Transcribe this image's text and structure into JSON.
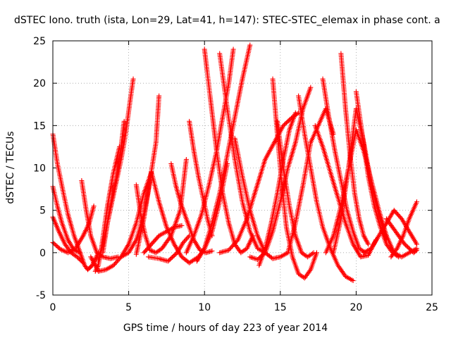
{
  "chart_data": {
    "type": "scatter",
    "title": "dSTEC Iono. truth (ista, Lon=29, Lat=41, h=147): STEC-STEC_elemax in phase cont. a",
    "xlabel": "GPS time / hours of day 223 of year 2014",
    "ylabel": "dSTEC  / TECUs",
    "xlim": [
      0,
      25
    ],
    "ylim": [
      -5,
      25
    ],
    "xticks": [
      0,
      5,
      10,
      15,
      20,
      25
    ],
    "yticks": [
      -5,
      0,
      5,
      10,
      15,
      20,
      25
    ],
    "grid": true,
    "marker": "plus",
    "color": "#ff0000",
    "series": [
      {
        "x": [
          0.0,
          0.3,
          0.7,
          1.0,
          1.4,
          1.8,
          2.1,
          2.3,
          2.6,
          3.0
        ],
        "y": [
          14.0,
          10.5,
          7.0,
          4.5,
          2.0,
          0.0,
          -1.5,
          -2.0,
          -1.5,
          0.0
        ]
      },
      {
        "x": [
          0.0,
          0.3,
          0.6,
          1.0,
          1.4,
          1.8
        ],
        "y": [
          7.8,
          5.5,
          3.5,
          1.5,
          0.3,
          0.0
        ]
      },
      {
        "x": [
          0.0,
          0.4,
          0.8,
          1.2,
          1.6,
          2.0
        ],
        "y": [
          4.2,
          2.5,
          1.0,
          0.0,
          -0.5,
          -1.2
        ]
      },
      {
        "x": [
          0.0,
          0.5,
          1.0,
          1.5,
          2.0,
          2.4,
          2.7
        ],
        "y": [
          1.2,
          0.4,
          0.0,
          0.5,
          2.0,
          3.5,
          5.5
        ]
      },
      {
        "x": [
          1.9,
          2.2,
          2.5,
          2.9,
          3.3,
          3.8,
          4.3
        ],
        "y": [
          8.5,
          5.0,
          2.0,
          0.0,
          -0.5,
          -0.7,
          -0.5
        ]
      },
      {
        "x": [
          2.8,
          3.0,
          3.2,
          3.4,
          3.6,
          3.8,
          4.0,
          4.2,
          4.4
        ],
        "y": [
          -2.2,
          -1.5,
          0.5,
          3.0,
          5.5,
          7.5,
          9.5,
          11.0,
          12.5
        ]
      },
      {
        "x": [
          3.0,
          3.3,
          3.6,
          3.9,
          4.2,
          4.5,
          4.8,
          5.1,
          5.3
        ],
        "y": [
          -1.0,
          1.0,
          3.5,
          6.0,
          8.5,
          11.0,
          14.0,
          18.0,
          20.5
        ]
      },
      {
        "x": [
          3.3,
          3.6,
          3.9,
          4.2,
          4.5,
          4.7
        ],
        "y": [
          0.0,
          3.5,
          6.5,
          9.0,
          12.5,
          15.5
        ]
      },
      {
        "x": [
          2.5,
          3.0,
          3.5,
          4.0,
          4.5,
          5.0,
          5.5,
          6.0,
          6.5
        ],
        "y": [
          -0.5,
          -2.2,
          -2.0,
          -1.5,
          -0.5,
          1.0,
          3.5,
          7.0,
          9.5
        ]
      },
      {
        "x": [
          4.5,
          5.0,
          5.5,
          6.0,
          6.4,
          6.8,
          7.0
        ],
        "y": [
          -0.5,
          0.0,
          1.5,
          4.5,
          8.5,
          13.0,
          18.5
        ]
      },
      {
        "x": [
          5.5,
          5.8,
          6.1,
          6.4,
          6.8,
          7.2,
          7.8,
          8.4,
          8.8
        ],
        "y": [
          8.0,
          4.5,
          2.0,
          0.3,
          0.0,
          0.5,
          2.0,
          5.0,
          11.0
        ]
      },
      {
        "x": [
          5.5,
          6.0,
          6.5,
          7.0,
          7.5,
          8.0,
          8.5,
          9.0,
          9.6,
          10.0,
          10.5,
          11.0,
          11.5
        ],
        "y": [
          -0.2,
          4.0,
          9.5,
          6.0,
          3.0,
          1.0,
          -0.5,
          -1.2,
          -0.5,
          0.5,
          2.5,
          6.0,
          10.5
        ]
      },
      {
        "x": [
          6.0,
          6.5,
          7.0,
          7.5,
          8.0,
          8.5
        ],
        "y": [
          0.0,
          1.0,
          2.0,
          2.5,
          3.0,
          3.2
        ]
      },
      {
        "x": [
          6.3,
          7.0,
          7.6,
          8.2,
          8.6,
          9.0
        ],
        "y": [
          -0.5,
          -0.7,
          -1.0,
          0.0,
          1.2,
          2.0
        ]
      },
      {
        "x": [
          7.8,
          8.1,
          8.4,
          8.7,
          9.0,
          9.3,
          9.7,
          10.1,
          10.5
        ],
        "y": [
          10.5,
          8.0,
          6.0,
          4.5,
          3.0,
          1.5,
          0.3,
          0.0,
          0.2
        ]
      },
      {
        "x": [
          9.0,
          9.3,
          9.6,
          9.9,
          10.2,
          10.5
        ],
        "y": [
          15.5,
          12.0,
          9.0,
          6.5,
          4.0,
          2.0
        ]
      },
      {
        "x": [
          8.8,
          9.3,
          9.8,
          10.3,
          10.8,
          11.2,
          11.6,
          11.9
        ],
        "y": [
          0.0,
          2.0,
          4.5,
          8.0,
          12.0,
          16.0,
          20.0,
          24.0
        ]
      },
      {
        "x": [
          9.5,
          10.0,
          10.5,
          11.0,
          11.5,
          12.0,
          12.5,
          13.0
        ],
        "y": [
          -1.0,
          0.5,
          3.5,
          7.0,
          11.5,
          16.0,
          20.5,
          24.5
        ]
      },
      {
        "x": [
          10.0,
          10.4,
          10.8,
          11.2,
          11.6,
          12.0,
          12.4,
          12.8,
          13.2
        ],
        "y": [
          24.0,
          18.0,
          12.0,
          7.0,
          3.5,
          1.0,
          0.0,
          0.5,
          2.0
        ]
      },
      {
        "x": [
          11.0,
          11.5,
          12.0,
          12.5,
          13.0,
          13.5,
          14.0
        ],
        "y": [
          23.5,
          17.0,
          11.0,
          6.0,
          2.5,
          0.5,
          0.0
        ]
      },
      {
        "x": [
          12.0,
          12.5,
          13.0,
          13.5,
          14.0,
          14.5,
          15.0,
          15.5
        ],
        "y": [
          13.5,
          9.0,
          5.0,
          2.0,
          0.0,
          -0.7,
          -0.5,
          0.0
        ]
      },
      {
        "x": [
          11.0,
          11.6,
          12.2,
          12.8,
          13.4,
          14.0,
          14.6,
          15.2,
          15.8,
          16.2
        ],
        "y": [
          0.0,
          0.3,
          1.5,
          4.0,
          7.5,
          11.0,
          13.0,
          15.0,
          16.0,
          16.5
        ]
      },
      {
        "x": [
          13.0,
          13.5,
          14.0,
          14.5,
          15.0,
          15.5,
          16.0,
          16.5,
          17.0
        ],
        "y": [
          -0.5,
          -0.8,
          0.0,
          2.5,
          6.0,
          10.0,
          13.0,
          17.0,
          19.5
        ]
      },
      {
        "x": [
          13.6,
          14.0,
          14.4,
          14.8,
          15.2,
          15.6,
          16.0
        ],
        "y": [
          -1.5,
          0.5,
          3.5,
          7.0,
          11.0,
          14.5,
          16.5
        ]
      },
      {
        "x": [
          14.5,
          14.8,
          15.1,
          15.4,
          15.8,
          16.2,
          16.6,
          17.0,
          17.4
        ],
        "y": [
          20.5,
          14.0,
          8.0,
          3.0,
          -0.5,
          -2.5,
          -3.0,
          -2.0,
          0.0
        ]
      },
      {
        "x": [
          14.8,
          15.2,
          15.6,
          16.0,
          16.4,
          16.8,
          17.2
        ],
        "y": [
          15.5,
          10.0,
          5.5,
          2.0,
          0.0,
          -0.5,
          0.0
        ]
      },
      {
        "x": [
          15.5,
          16.0,
          16.5,
          17.0,
          17.5,
          18.0,
          18.5
        ],
        "y": [
          0.0,
          3.5,
          8.0,
          13.0,
          15.0,
          17.0,
          14.0
        ]
      },
      {
        "x": [
          16.2,
          16.6,
          17.0,
          17.4,
          17.8,
          18.3,
          18.8,
          19.3,
          19.8
        ],
        "y": [
          18.5,
          14.0,
          10.0,
          6.0,
          3.0,
          0.5,
          -1.5,
          -2.8,
          -3.3
        ]
      },
      {
        "x": [
          17.3,
          17.8,
          18.3,
          18.8,
          19.3,
          19.8,
          20.3,
          20.8,
          21.3
        ],
        "y": [
          15.0,
          12.5,
          9.5,
          6.5,
          3.5,
          1.0,
          -0.5,
          -0.3,
          1.5
        ]
      },
      {
        "x": [
          17.8,
          18.2,
          18.6,
          19.0,
          19.4,
          19.8,
          20.2,
          20.6
        ],
        "y": [
          20.5,
          16.0,
          12.0,
          8.5,
          5.0,
          2.5,
          0.5,
          0.0
        ]
      },
      {
        "x": [
          18.0,
          18.5,
          19.0,
          19.5,
          20.0,
          20.5,
          21.0,
          21.5,
          22.0
        ],
        "y": [
          0.0,
          2.0,
          5.5,
          10.0,
          14.5,
          12.0,
          8.5,
          5.0,
          2.0
        ]
      },
      {
        "x": [
          18.5,
          19.0,
          19.5,
          20.0,
          20.5,
          21.0,
          21.5,
          22.0
        ],
        "y": [
          0.0,
          4.0,
          10.0,
          17.0,
          13.0,
          8.0,
          4.5,
          1.5
        ]
      },
      {
        "x": [
          19.0,
          19.3,
          19.6,
          19.9,
          20.2,
          20.5,
          20.8
        ],
        "y": [
          23.5,
          17.0,
          11.5,
          7.0,
          4.0,
          2.0,
          1.0
        ]
      },
      {
        "x": [
          20.0,
          20.4,
          20.8,
          21.2,
          21.6,
          22.0,
          22.4,
          22.8
        ],
        "y": [
          19.0,
          14.0,
          9.0,
          5.5,
          3.0,
          1.0,
          0.0,
          -0.5
        ]
      },
      {
        "x": [
          20.5,
          21.0,
          21.5,
          22.0,
          22.5,
          23.0,
          23.5,
          24.0
        ],
        "y": [
          0.0,
          0.5,
          2.0,
          3.5,
          5.0,
          4.0,
          2.5,
          1.0
        ]
      },
      {
        "x": [
          21.5,
          22.0,
          22.5,
          23.0,
          23.5,
          24.0
        ],
        "y": [
          4.5,
          2.0,
          0.0,
          -0.5,
          0.0,
          0.5
        ]
      },
      {
        "x": [
          22.3,
          22.7,
          23.1,
          23.5,
          24.0
        ],
        "y": [
          -0.5,
          0.5,
          2.0,
          4.0,
          6.0
        ]
      },
      {
        "x": [
          22.0,
          22.6,
          23.2,
          23.8,
          24.0
        ],
        "y": [
          4.0,
          2.5,
          1.0,
          0.0,
          0.3
        ]
      }
    ]
  }
}
